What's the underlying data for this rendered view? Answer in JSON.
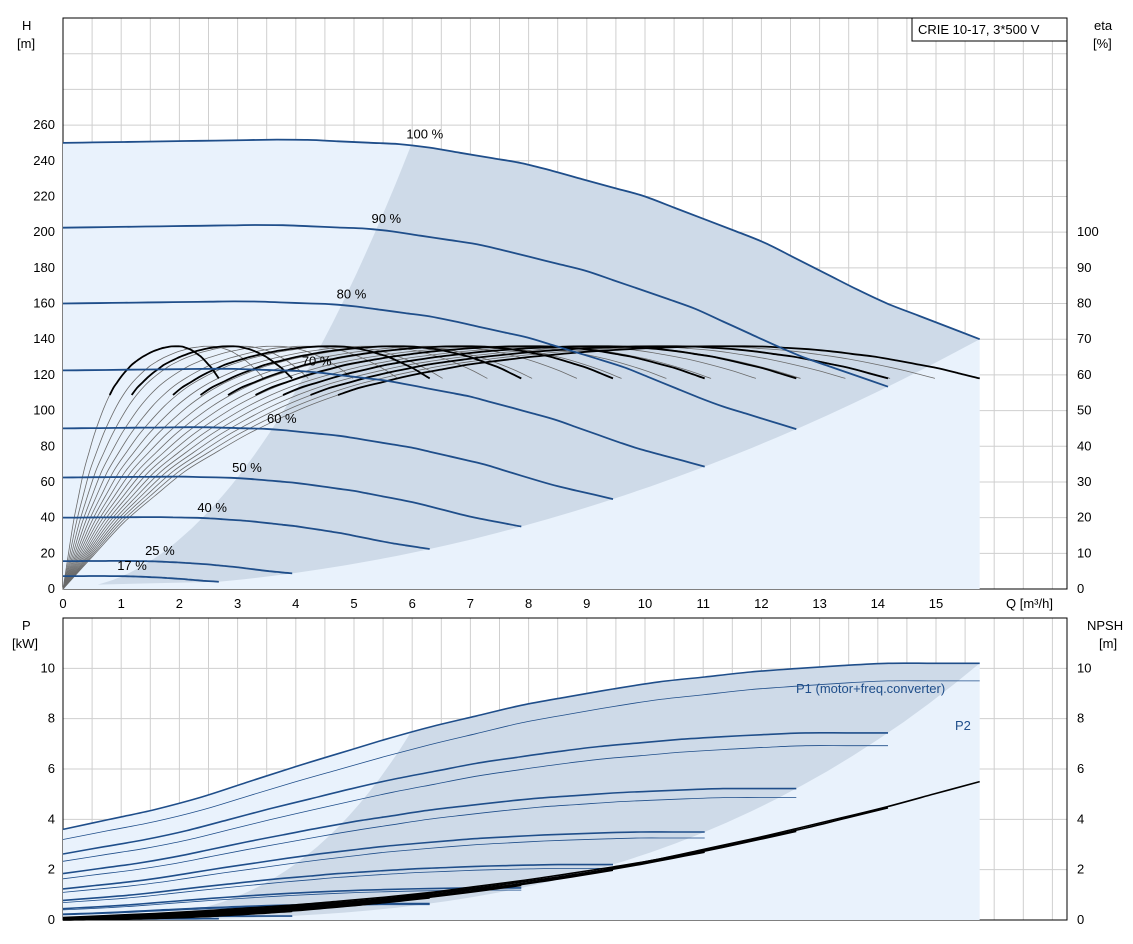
{
  "colors": {
    "op_area_light": "#e9f2fc",
    "op_area_dark": "#c9d6e4",
    "head_curve": "#1f4e8a",
    "eff_curve": "#000000",
    "thin_curve": "#6a6a6a",
    "grid": "#cfcfcf"
  },
  "chart_data": [
    {
      "type": "line",
      "title": "CRIE 10-17, 3*500 V",
      "xlabel": "Q [m³/h]",
      "ylabel": "H\n[m]",
      "y2label": "eta\n[%]",
      "xlim": [
        0,
        16.0
      ],
      "ylim": [
        0,
        320
      ],
      "y2lim": [
        0,
        160
      ],
      "x_ticks": [
        0,
        1,
        2,
        3,
        4,
        5,
        6,
        7,
        8,
        9,
        10,
        11,
        12,
        13,
        14,
        15
      ],
      "y_ticks": [
        0,
        20,
        40,
        60,
        80,
        100,
        120,
        140,
        160,
        180,
        200,
        220,
        240,
        260
      ],
      "y2_ticks": [
        0,
        10,
        20,
        30,
        40,
        50,
        60,
        70,
        80,
        90,
        100
      ],
      "grid": true,
      "head_series": [
        {
          "name": "100 %",
          "speed": 1.0
        },
        {
          "name": "90 %",
          "speed": 0.9
        },
        {
          "name": "80 %",
          "speed": 0.8
        },
        {
          "name": "70 %",
          "speed": 0.7
        },
        {
          "name": "60 %",
          "speed": 0.6
        },
        {
          "name": "50 %",
          "speed": 0.5
        },
        {
          "name": "40 %",
          "speed": 0.4
        },
        {
          "name": "25 %",
          "speed": 0.25
        },
        {
          "name": "17 %",
          "speed": 0.17
        }
      ],
      "head_100_points": [
        [
          0,
          250
        ],
        [
          2,
          251
        ],
        [
          4,
          252
        ],
        [
          6,
          249
        ],
        [
          8,
          238
        ],
        [
          10,
          220
        ],
        [
          12,
          195
        ],
        [
          14,
          162
        ],
        [
          15.75,
          140
        ]
      ],
      "efficiency_100_points_pct": [
        [
          0,
          0
        ],
        [
          1,
          18
        ],
        [
          2,
          32
        ],
        [
          3,
          42
        ],
        [
          4,
          50
        ],
        [
          5,
          56
        ],
        [
          6,
          60
        ],
        [
          7,
          63
        ],
        [
          8,
          65
        ],
        [
          9,
          66.5
        ],
        [
          10,
          67.5
        ],
        [
          11,
          68
        ],
        [
          12,
          68
        ],
        [
          13,
          67
        ],
        [
          14,
          65
        ],
        [
          15,
          62
        ],
        [
          15.75,
          59
        ]
      ]
    },
    {
      "type": "line",
      "title": "",
      "xlabel": "",
      "ylabel": "P\n[kW]",
      "y2label": "NPSH\n[m]",
      "xlim": [
        0,
        16.0
      ],
      "ylim": [
        0,
        12
      ],
      "y2lim": [
        0,
        12
      ],
      "y_ticks": [
        0,
        2,
        4,
        6,
        8,
        10
      ],
      "y2_ticks": [
        0,
        2,
        4,
        6,
        8,
        10
      ],
      "grid": true,
      "p1_100_points": [
        [
          0,
          3.6
        ],
        [
          2,
          4.6
        ],
        [
          4,
          6.1
        ],
        [
          6,
          7.5
        ],
        [
          8,
          8.6
        ],
        [
          10,
          9.4
        ],
        [
          12,
          9.9
        ],
        [
          14,
          10.2
        ],
        [
          15.75,
          10.2
        ]
      ],
      "p2_100_points": [
        [
          0,
          3.2
        ],
        [
          2,
          4.1
        ],
        [
          4,
          5.5
        ],
        [
          6,
          6.8
        ],
        [
          8,
          7.9
        ],
        [
          10,
          8.7
        ],
        [
          12,
          9.2
        ],
        [
          14,
          9.5
        ],
        [
          15.75,
          9.5
        ]
      ],
      "npsh_points": [
        [
          0,
          0.1
        ],
        [
          2,
          0.3
        ],
        [
          4,
          0.6
        ],
        [
          6,
          1.0
        ],
        [
          8,
          1.6
        ],
        [
          10,
          2.3
        ],
        [
          12,
          3.3
        ],
        [
          14,
          4.4
        ],
        [
          15.75,
          5.5
        ]
      ],
      "series": [
        {
          "name": "P1 (motor+freq.converter)"
        },
        {
          "name": "P2"
        }
      ]
    }
  ]
}
